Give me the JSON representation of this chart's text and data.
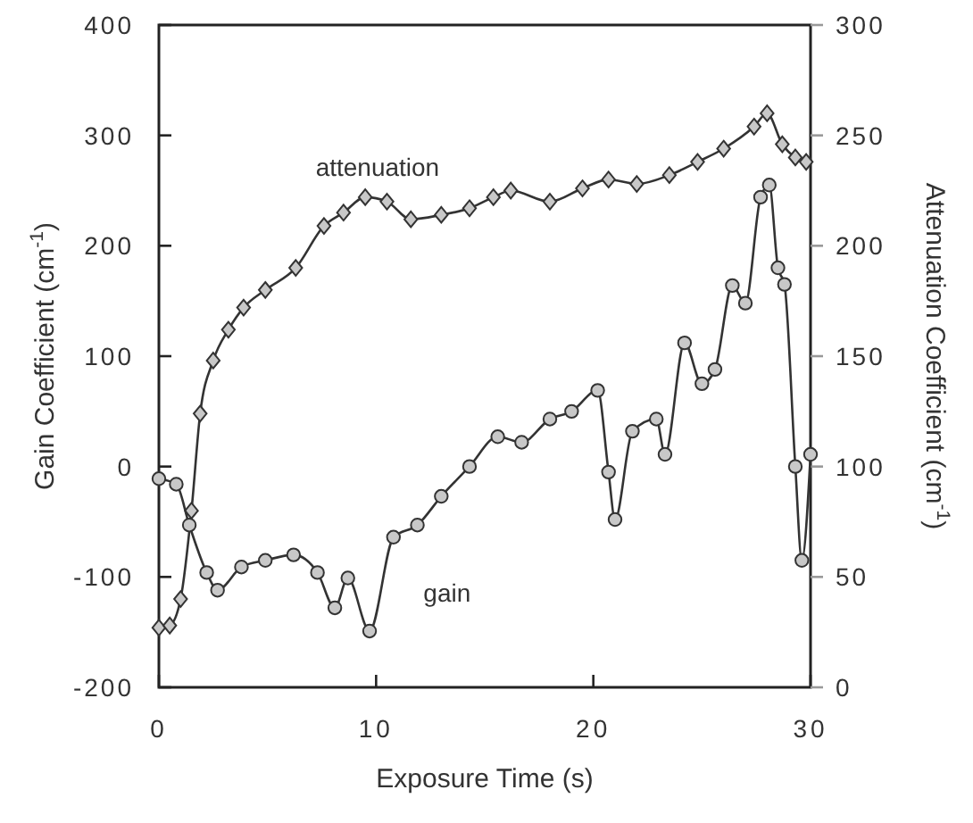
{
  "chart_data": {
    "type": "line",
    "xlabel": "Exposure Time (s)",
    "ylabel": "Gain Coefficient (cm$^{-1}$)",
    "y2label": "Attenuation Coefficient (cm$^{-1}$)",
    "xlim": [
      0,
      30
    ],
    "xticks": [
      0,
      10,
      20,
      30
    ],
    "ylim": [
      -200,
      400
    ],
    "yticks": [
      -200,
      -100,
      0,
      100,
      200,
      300,
      400
    ],
    "y2lim": [
      0,
      300
    ],
    "y2ticks": [
      0,
      50,
      100,
      150,
      200,
      250,
      300
    ],
    "grid": false,
    "series": [
      {
        "name": "attenuation",
        "axis": "y2",
        "marker": "diamond",
        "color": "#333333",
        "x": [
          0,
          0.5,
          1,
          1.5,
          1.9,
          2.5,
          3.2,
          3.9,
          4.9,
          6.3,
          7.6,
          8.5,
          9.5,
          10.5,
          11.6,
          13,
          14.3,
          15.4,
          16.2,
          18,
          19.5,
          20.7,
          22,
          23.5,
          24.8,
          26,
          27.4,
          28,
          28.7,
          29.3,
          29.8
        ],
        "values": [
          27,
          28,
          40,
          80,
          124,
          148,
          162,
          172,
          180,
          190,
          209,
          215,
          222,
          220,
          212,
          214,
          217,
          222,
          225,
          220,
          226,
          230,
          228,
          232,
          238,
          244,
          254,
          260,
          246,
          240,
          238
        ]
      },
      {
        "name": "gain",
        "marker": "circle",
        "color": "#333333",
        "x": [
          0,
          0.8,
          1.4,
          2.2,
          2.7,
          3.8,
          4.9,
          6.2,
          7.3,
          8.1,
          8.7,
          9.7,
          10.8,
          11.9,
          13,
          14.3,
          15.6,
          16.7,
          18,
          19,
          20.2,
          20.7,
          21,
          21.8,
          22.9,
          23.3,
          24.2,
          25,
          25.6,
          26.4,
          27,
          27.7,
          28.1,
          28.5,
          28.8,
          29.3,
          29.6,
          30
        ],
        "values": [
          -11,
          -16,
          -53,
          -96,
          -112,
          -91,
          -85,
          -80,
          -96,
          -128,
          -101,
          -149,
          -64,
          -53,
          -27,
          0,
          27,
          22,
          43,
          50,
          69,
          -5,
          -48,
          32,
          43,
          11,
          112,
          75,
          88,
          164,
          148,
          244,
          255,
          180,
          165,
          0,
          -85,
          11
        ]
      }
    ]
  }
}
